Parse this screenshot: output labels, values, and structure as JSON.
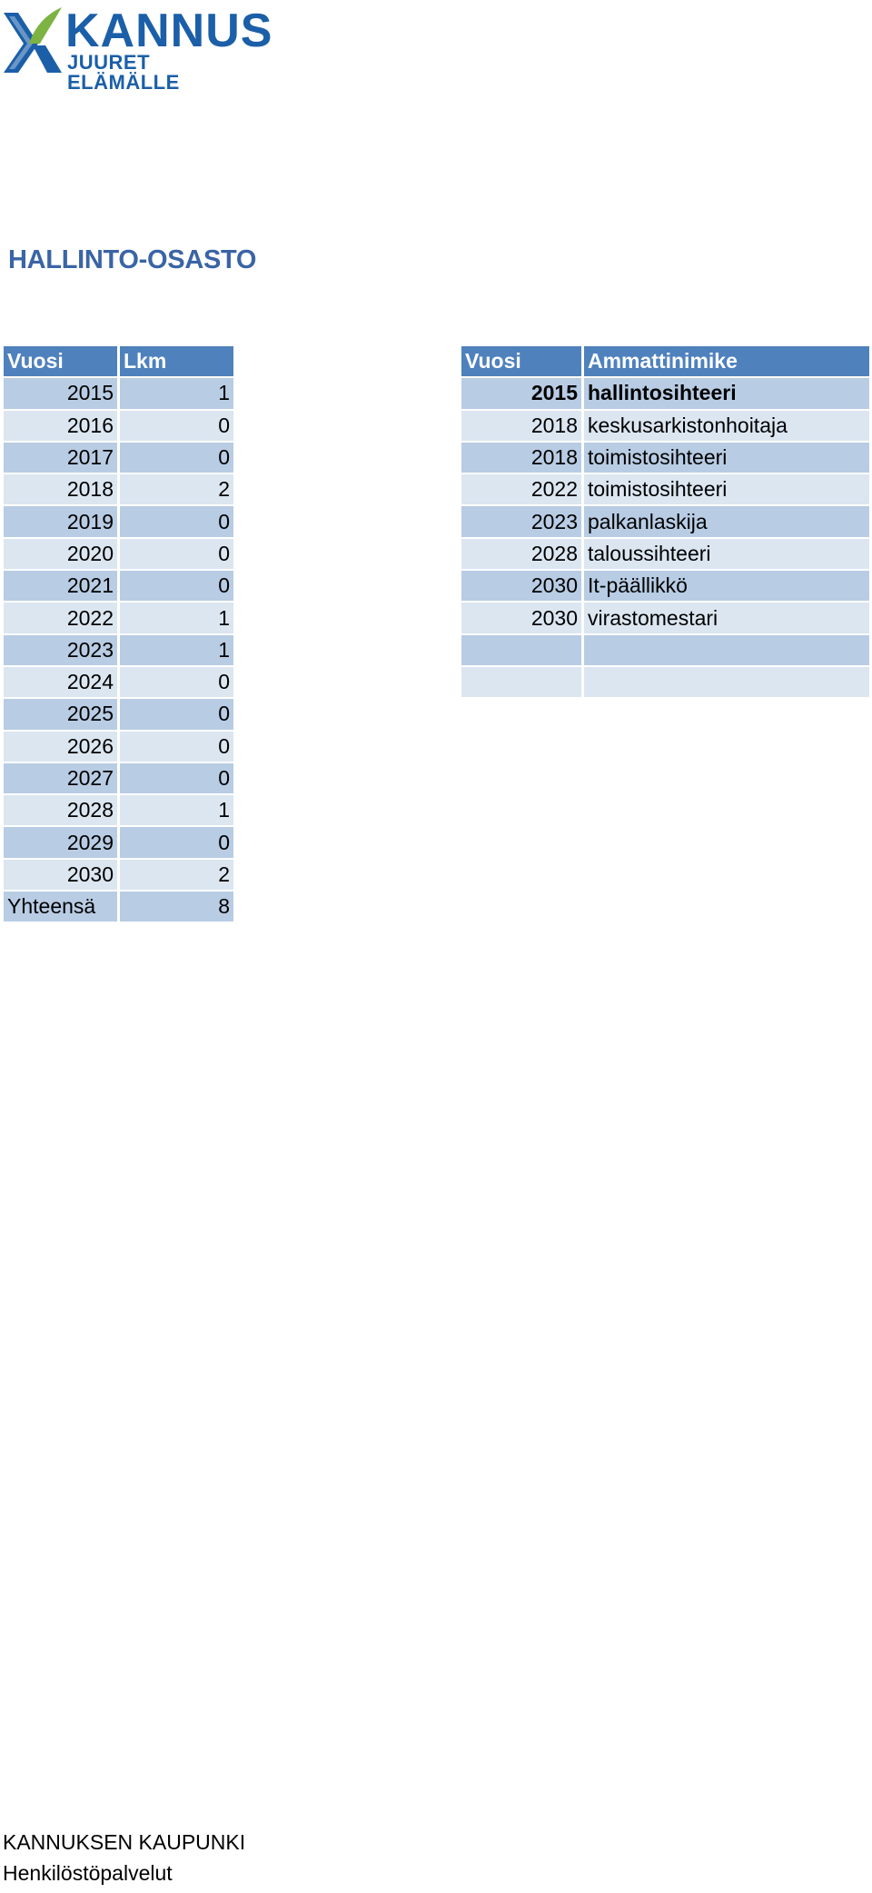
{
  "logo": {
    "name": "KANNUS",
    "tagline": "JUURET ELÄMÄLLE"
  },
  "heading": "HALLINTO-OSASTO",
  "summary_table": {
    "headers": [
      "Vuosi",
      "Lkm"
    ],
    "rows": [
      [
        "2015",
        "1"
      ],
      [
        "2016",
        "0"
      ],
      [
        "2017",
        "0"
      ],
      [
        "2018",
        "2"
      ],
      [
        "2019",
        "0"
      ],
      [
        "2020",
        "0"
      ],
      [
        "2021",
        "0"
      ],
      [
        "2022",
        "1"
      ],
      [
        "2023",
        "1"
      ],
      [
        "2024",
        "0"
      ],
      [
        "2025",
        "0"
      ],
      [
        "2026",
        "0"
      ],
      [
        "2027",
        "0"
      ],
      [
        "2028",
        "1"
      ],
      [
        "2029",
        "0"
      ],
      [
        "2030",
        "2"
      ]
    ],
    "total": [
      "Yhteensä",
      "8"
    ]
  },
  "titles_table": {
    "headers": [
      "Vuosi",
      "Ammattinimike"
    ],
    "rows": [
      [
        "2015",
        "hallintosihteeri"
      ],
      [
        "2018",
        "keskusarkistonhoitaja"
      ],
      [
        "2018",
        "toimistosihteeri"
      ],
      [
        "2022",
        "toimistosihteeri"
      ],
      [
        "2023",
        "palkanlaskija"
      ],
      [
        "2028",
        "taloussihteeri"
      ],
      [
        "2030",
        "It-päällikkö"
      ],
      [
        "2030",
        "virastomestari"
      ],
      [
        "",
        ""
      ],
      [
        "",
        ""
      ]
    ]
  },
  "footer": {
    "line1": "KANNUKSEN KAUPUNKI",
    "line2": "Henkilöstöpalvelut"
  }
}
